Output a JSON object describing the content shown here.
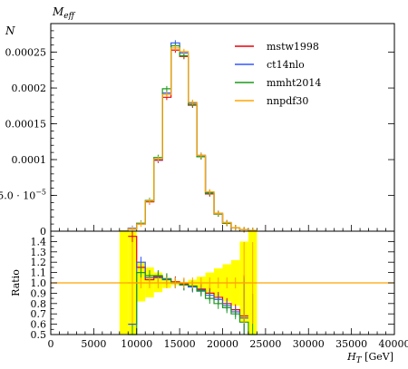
{
  "chart_data": {
    "type": "line",
    "title": "M_eff",
    "title_main": "M",
    "title_sub": "eff",
    "ylabel_top": "N",
    "ylabel_ratio": "Ratio",
    "xlabel_main": "H",
    "xlabel_sub": "T",
    "xlabel_unit": "[GeV]",
    "xlim": [
      0,
      40000
    ],
    "ylim_top": [
      0,
      0.00029
    ],
    "ylim_ratio": [
      0.5,
      1.5
    ],
    "x_ticks": [
      "0",
      "5000",
      "10000",
      "15000",
      "20000",
      "25000",
      "30000",
      "35000",
      "40000"
    ],
    "x_tick_values": [
      0,
      5000,
      10000,
      15000,
      20000,
      25000,
      30000,
      35000,
      40000
    ],
    "y_ticks_top": [
      "0",
      "5.0 · 10",
      "0.0001",
      "0.00015",
      "0.0002",
      "0.00025"
    ],
    "y_tick_sup": "−5",
    "y_tick_values_top": [
      0,
      5e-05,
      0.0001,
      0.00015,
      0.0002,
      0.00025
    ],
    "y_ticks_ratio": [
      "0.5",
      "0.6",
      "0.7",
      "0.8",
      "0.9",
      "1.0",
      "1.1",
      "1.2",
      "1.3",
      "1.4"
    ],
    "y_tick_values_ratio": [
      0.5,
      0.6,
      0.7,
      0.8,
      0.9,
      1.0,
      1.1,
      1.2,
      1.3,
      1.4
    ],
    "legend_position": "top-right",
    "bin_edges": [
      8000,
      9000,
      10000,
      11000,
      12000,
      13000,
      14000,
      15000,
      16000,
      17000,
      18000,
      19000,
      20000,
      21000,
      22000,
      23000,
      24000
    ],
    "series": [
      {
        "name": "mstw1998",
        "color": "#e8000b",
        "values": [
          0.0,
          3e-06,
          1e-05,
          4.1e-05,
          9.9e-05,
          0.000187,
          0.000253,
          0.000244,
          0.000176,
          0.000104,
          5.2e-05,
          2.4e-05,
          1.1e-05,
          5e-06,
          2e-06,
          1e-06
        ]
      },
      {
        "name": "ct14nlo",
        "color": "#3355ff",
        "values": [
          0.0,
          4e-06,
          1.1e-05,
          4.2e-05,
          0.0001,
          0.000193,
          0.000263,
          0.000249,
          0.000179,
          0.000106,
          5.4e-05,
          2.5e-05,
          1.2e-05,
          5e-06,
          2e-06,
          1e-06
        ]
      },
      {
        "name": "mmht2014",
        "color": "#1a9a1a",
        "values": [
          0.0,
          3e-06,
          1.1e-05,
          4.3e-05,
          0.000103,
          0.000199,
          0.000259,
          0.000245,
          0.000177,
          0.000104,
          5.3e-05,
          2.4e-05,
          1.1e-05,
          5e-06,
          2e-06,
          1e-06
        ]
      },
      {
        "name": "nnpdf30",
        "color": "#ffa500",
        "values": [
          0.0,
          3e-06,
          1e-05,
          4.2e-05,
          0.000101,
          0.000191,
          0.000256,
          0.000251,
          0.00018,
          0.000106,
          5.5e-05,
          2.5e-05,
          1.2e-05,
          5e-06,
          2e-06,
          1e-06
        ]
      }
    ],
    "ratio_series": [
      {
        "name": "mstw1998",
        "color": "#e8000b",
        "values": [
          null,
          1.45,
          1.15,
          1.03,
          1.06,
          1.04,
          1.01,
          0.99,
          0.97,
          0.94,
          0.9,
          0.86,
          0.8,
          0.74,
          0.68,
          null
        ]
      },
      {
        "name": "ct14nlo",
        "color": "#3355ff",
        "values": [
          null,
          0.6,
          1.2,
          1.05,
          1.05,
          1.03,
          1.0,
          0.98,
          0.96,
          0.93,
          0.88,
          0.84,
          0.78,
          0.72,
          0.66,
          null
        ]
      },
      {
        "name": "mmht2014",
        "color": "#1a9a1a",
        "values": [
          null,
          0.5,
          1.1,
          1.07,
          1.07,
          1.04,
          1.0,
          0.98,
          0.97,
          0.92,
          0.85,
          0.8,
          0.76,
          0.7,
          0.62,
          0.5
        ]
      },
      {
        "name": "nnpdf30",
        "color": "#ffa500",
        "values": [
          null,
          1.0,
          1.0,
          1.0,
          1.0,
          1.0,
          1.0,
          1.0,
          1.0,
          1.0,
          1.0,
          1.0,
          1.0,
          1.0,
          1.0,
          1.0
        ]
      }
    ],
    "ratio_band": {
      "color": "#ffff00",
      "lo": [
        0.5,
        0.5,
        0.82,
        0.86,
        0.91,
        0.95,
        0.98,
        0.99,
        0.97,
        0.94,
        0.9,
        0.86,
        0.82,
        0.78,
        0.62,
        0.5
      ],
      "hi": [
        1.5,
        1.5,
        1.2,
        1.15,
        1.1,
        1.05,
        1.02,
        1.01,
        1.03,
        1.06,
        1.1,
        1.14,
        1.18,
        1.22,
        1.4,
        1.5
      ]
    }
  }
}
